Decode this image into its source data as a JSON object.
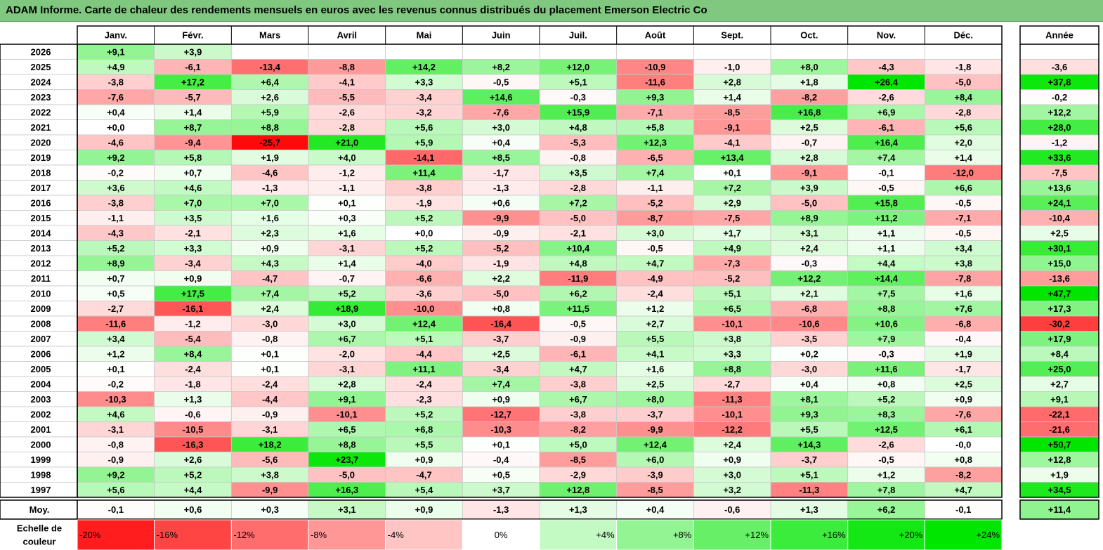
{
  "title": "ADAM Informe. Carte de chaleur des rendements mensuels en euros avec les revenus connus distribués du placement Emerson Electric Co",
  "chart_data": {
    "type": "heatmap",
    "title": "ADAM Informe. Carte de chaleur des rendements mensuels en euros avec les revenus connus distribués du placement Emerson Electric Co",
    "columns": [
      "Janv.",
      "Févr.",
      "Mars",
      "Avril",
      "Mai",
      "Juin",
      "Juil.",
      "Août",
      "Sept.",
      "Oct.",
      "Nov.",
      "Déc."
    ],
    "year_column": "Année",
    "rows": [
      {
        "year": "2026",
        "values": [
          "+9,1",
          "+3,9",
          "",
          "",
          "",
          "",
          "",
          "",
          "",
          "",
          "",
          ""
        ],
        "annual": ""
      },
      {
        "year": "2025",
        "values": [
          "+4,9",
          "-6,1",
          "-13,4",
          "-8,8",
          "+14,2",
          "+8,2",
          "+12,0",
          "-10,9",
          "-1,0",
          "+8,0",
          "-4,3",
          "-1,8"
        ],
        "annual": "-3,6"
      },
      {
        "year": "2024",
        "values": [
          "-3,8",
          "+17,2",
          "+6,4",
          "-4,1",
          "+3,3",
          "-0,5",
          "+5,1",
          "-11,6",
          "+2,8",
          "+1,8",
          "+26,4",
          "-5,0"
        ],
        "annual": "+37,8"
      },
      {
        "year": "2023",
        "values": [
          "-7,6",
          "-5,7",
          "+2,6",
          "-5,5",
          "-3,4",
          "+14,6",
          "-0,3",
          "+9,3",
          "+1,4",
          "-8,2",
          "-2,6",
          "+8,4"
        ],
        "annual": "-0,2"
      },
      {
        "year": "2022",
        "values": [
          "+0,4",
          "+1,4",
          "+5,9",
          "-2,6",
          "-3,2",
          "-7,6",
          "+15,9",
          "-7,1",
          "-8,5",
          "+16,8",
          "+6,9",
          "-2,8"
        ],
        "annual": "+12,2"
      },
      {
        "year": "2021",
        "values": [
          "+0,0",
          "+8,7",
          "+8,8",
          "-2,8",
          "+5,6",
          "+3,0",
          "+4,8",
          "+5,8",
          "-9,1",
          "+2,5",
          "-6,1",
          "+5,6"
        ],
        "annual": "+28,0"
      },
      {
        "year": "2020",
        "values": [
          "-4,6",
          "-9,4",
          "-25,7",
          "+21,0",
          "+5,9",
          "+0,4",
          "-5,3",
          "+12,3",
          "-4,1",
          "-0,7",
          "+16,4",
          "+2,0"
        ],
        "annual": "-1,2"
      },
      {
        "year": "2019",
        "values": [
          "+9,2",
          "+5,8",
          "+1,9",
          "+4,0",
          "-14,1",
          "+8,5",
          "-0,8",
          "-6,5",
          "+13,4",
          "+2,8",
          "+7,4",
          "+1,4"
        ],
        "annual": "+33,6"
      },
      {
        "year": "2018",
        "values": [
          "-0,2",
          "+0,7",
          "-4,6",
          "-1,2",
          "+11,4",
          "-1,7",
          "+3,5",
          "+7,4",
          "+0,1",
          "-9,1",
          "-0,1",
          "-12,0"
        ],
        "annual": "-7,5"
      },
      {
        "year": "2017",
        "values": [
          "+3,6",
          "+4,6",
          "-1,3",
          "-1,1",
          "-3,8",
          "-1,3",
          "-2,8",
          "-1,1",
          "+7,2",
          "+3,9",
          "-0,5",
          "+6,6"
        ],
        "annual": "+13,6"
      },
      {
        "year": "2016",
        "values": [
          "-3,8",
          "+7,0",
          "+7,0",
          "+0,1",
          "-1,9",
          "+0,6",
          "+7,2",
          "-5,2",
          "+2,9",
          "-5,0",
          "+15,8",
          "-0,5"
        ],
        "annual": "+24,1"
      },
      {
        "year": "2015",
        "values": [
          "-1,1",
          "+3,5",
          "+1,6",
          "+0,3",
          "+5,2",
          "-9,9",
          "-5,0",
          "-8,7",
          "-7,5",
          "+8,9",
          "+11,2",
          "-7,1"
        ],
        "annual": "-10,4"
      },
      {
        "year": "2014",
        "values": [
          "-4,3",
          "-2,1",
          "+2,3",
          "+1,6",
          "+0,0",
          "-0,9",
          "-2,1",
          "+3,0",
          "+1,7",
          "+3,1",
          "+1,1",
          "-0,5"
        ],
        "annual": "+2,5"
      },
      {
        "year": "2013",
        "values": [
          "+5,2",
          "+3,3",
          "+0,9",
          "-3,1",
          "+5,2",
          "-5,2",
          "+10,4",
          "-0,5",
          "+4,9",
          "+2,4",
          "+1,1",
          "+3,4"
        ],
        "annual": "+30,1"
      },
      {
        "year": "2012",
        "values": [
          "+8,9",
          "-3,4",
          "+4,3",
          "+1,4",
          "-4,0",
          "-1,9",
          "+4,8",
          "+4,7",
          "-7,3",
          "-0,3",
          "+4,4",
          "+3,8"
        ],
        "annual": "+15,0"
      },
      {
        "year": "2011",
        "values": [
          "+0,7",
          "+0,9",
          "-4,7",
          "-0,7",
          "-6,6",
          "+2,2",
          "-11,9",
          "-4,9",
          "-5,2",
          "+12,2",
          "+14,4",
          "-7,8"
        ],
        "annual": "-13,6"
      },
      {
        "year": "2010",
        "values": [
          "+0,5",
          "+17,5",
          "+7,4",
          "+5,2",
          "-3,6",
          "-5,0",
          "+6,2",
          "-2,4",
          "+5,1",
          "+2,1",
          "+7,5",
          "+1,6"
        ],
        "annual": "+47,7"
      },
      {
        "year": "2009",
        "values": [
          "-2,7",
          "-16,1",
          "+2,4",
          "+18,9",
          "-10,0",
          "+0,8",
          "+11,5",
          "+1,2",
          "+6,5",
          "-6,8",
          "+8,8",
          "+7,6"
        ],
        "annual": "+17,3"
      },
      {
        "year": "2008",
        "values": [
          "-11,6",
          "-1,2",
          "-3,0",
          "+3,0",
          "+12,4",
          "-16,4",
          "-0,5",
          "+2,7",
          "-10,1",
          "-10,6",
          "+10,6",
          "-6,8"
        ],
        "annual": "-30,2"
      },
      {
        "year": "2007",
        "values": [
          "+3,4",
          "-5,4",
          "-0,8",
          "+6,7",
          "+5,1",
          "-3,7",
          "-0,9",
          "+5,5",
          "+3,8",
          "-3,5",
          "+7,9",
          "-0,4"
        ],
        "annual": "+17,9"
      },
      {
        "year": "2006",
        "values": [
          "+1,2",
          "+8,4",
          "+0,1",
          "-2,0",
          "-4,4",
          "+2,5",
          "-6,1",
          "+4,1",
          "+3,3",
          "+0,2",
          "-0,3",
          "+1,9"
        ],
        "annual": "+8,4"
      },
      {
        "year": "2005",
        "values": [
          "+0,1",
          "-2,4",
          "+0,1",
          "-3,1",
          "+11,1",
          "-3,4",
          "+4,7",
          "+1,6",
          "+8,8",
          "-3,0",
          "+11,6",
          "-1,7"
        ],
        "annual": "+25,0"
      },
      {
        "year": "2004",
        "values": [
          "-0,2",
          "-1,8",
          "-2,4",
          "+2,8",
          "-2,4",
          "+7,4",
          "-3,8",
          "+2,5",
          "-2,7",
          "+0,4",
          "+0,8",
          "+2,5"
        ],
        "annual": "+2,7"
      },
      {
        "year": "2003",
        "values": [
          "-10,3",
          "+1,3",
          "-4,4",
          "+9,1",
          "-2,3",
          "+0,9",
          "+6,7",
          "+8,0",
          "-11,3",
          "+8,1",
          "+5,2",
          "+0,9"
        ],
        "annual": "+9,1"
      },
      {
        "year": "2002",
        "values": [
          "+4,6",
          "-0,6",
          "-0,9",
          "-10,1",
          "+5,2",
          "-12,7",
          "-3,8",
          "-3,7",
          "-10,1",
          "+9,3",
          "+8,3",
          "-7,6"
        ],
        "annual": "-22,1"
      },
      {
        "year": "2001",
        "values": [
          "-3,1",
          "-10,5",
          "-3,1",
          "+6,5",
          "+6,8",
          "-10,3",
          "-8,2",
          "-9,9",
          "-12,2",
          "+5,5",
          "+12,5",
          "+6,1"
        ],
        "annual": "-21,6"
      },
      {
        "year": "2000",
        "values": [
          "-0,8",
          "-16,3",
          "+18,2",
          "+8,8",
          "+5,5",
          "+0,1",
          "+5,0",
          "+12,4",
          "+2,4",
          "+14,3",
          "-2,6",
          "-0,0"
        ],
        "annual": "+50,7"
      },
      {
        "year": "1999",
        "values": [
          "-0,9",
          "+2,6",
          "-5,6",
          "+23,7",
          "+0,9",
          "-0,4",
          "-8,5",
          "+6,0",
          "+0,9",
          "-3,7",
          "-0,5",
          "+0,8"
        ],
        "annual": "+12,8"
      },
      {
        "year": "1998",
        "values": [
          "+9,2",
          "+5,2",
          "+3,8",
          "-5,0",
          "-4,7",
          "+0,5",
          "-2,9",
          "-3,9",
          "+3,0",
          "+5,1",
          "+1,2",
          "-8,2"
        ],
        "annual": "+1,9"
      },
      {
        "year": "1997",
        "values": [
          "+5,6",
          "+4,4",
          "-9,9",
          "+16,3",
          "+5,4",
          "+3,7",
          "+12,8",
          "-8,5",
          "+3,2",
          "-11,3",
          "+7,8",
          "+4,7"
        ],
        "annual": "+34,5"
      }
    ],
    "average_row": {
      "label": "Moy.",
      "values": [
        "-0,1",
        "+0,6",
        "+0,3",
        "+3,1",
        "+0,9",
        "-1,3",
        "+1,3",
        "+0,4",
        "-0,6",
        "+1,3",
        "+6,2",
        "-0,1"
      ],
      "annual": "+11,4"
    },
    "color_scale": {
      "label_line1": "Echelle de",
      "label_line2": "couleur",
      "stops": [
        "-20%",
        "-16%",
        "-12%",
        "-8%",
        "-4%",
        "0%",
        "+4%",
        "+8%",
        "+12%",
        "+16%",
        "+20%",
        "+24%"
      ],
      "stop_values": [
        -20,
        -16,
        -12,
        -8,
        -4,
        0,
        4,
        8,
        12,
        16,
        20,
        24
      ]
    },
    "colors": {
      "negative": "#ff0000",
      "positive": "#00e000",
      "neutral": "#ffffff",
      "title_bg": "#80c880"
    }
  }
}
